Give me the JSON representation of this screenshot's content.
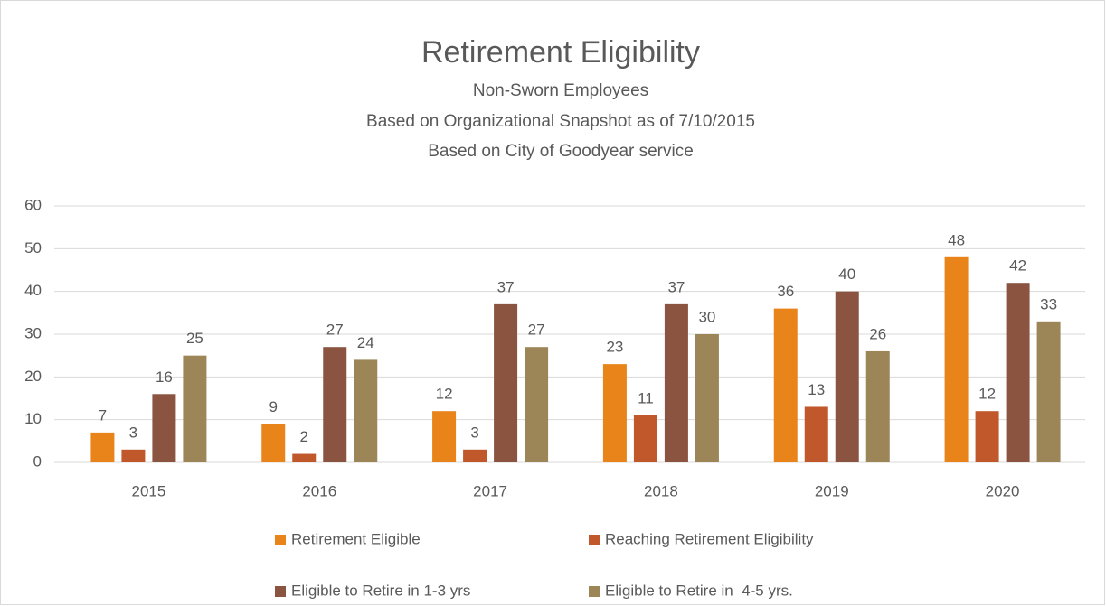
{
  "chart_data": {
    "type": "bar",
    "title": "Retirement Eligibility",
    "subtitle": [
      "Non-Sworn Employees",
      "Based on Organizational Snapshot as of 7/10/2015",
      "Based on City of Goodyear service"
    ],
    "categories": [
      "2015",
      "2016",
      "2017",
      "2018",
      "2019",
      "2020"
    ],
    "series": [
      {
        "name": "Retirement Eligible",
        "color": "#e8841a",
        "values": [
          7,
          9,
          12,
          23,
          36,
          48
        ]
      },
      {
        "name": "Reaching Retirement Eligibility",
        "color": "#c0582b",
        "values": [
          3,
          2,
          3,
          11,
          13,
          12
        ]
      },
      {
        "name": "Eligible to Retire in 1-3 yrs",
        "color": "#8b5440",
        "values": [
          16,
          27,
          37,
          37,
          40,
          42
        ]
      },
      {
        "name": "Eligible to Retire in  4-5 yrs.",
        "color": "#9c8557",
        "values": [
          25,
          24,
          27,
          30,
          26,
          33
        ]
      }
    ],
    "ylim": [
      0,
      60
    ],
    "yticks": [
      0,
      10,
      20,
      30,
      40,
      50,
      60
    ],
    "grid": true,
    "legend": "bottom"
  }
}
